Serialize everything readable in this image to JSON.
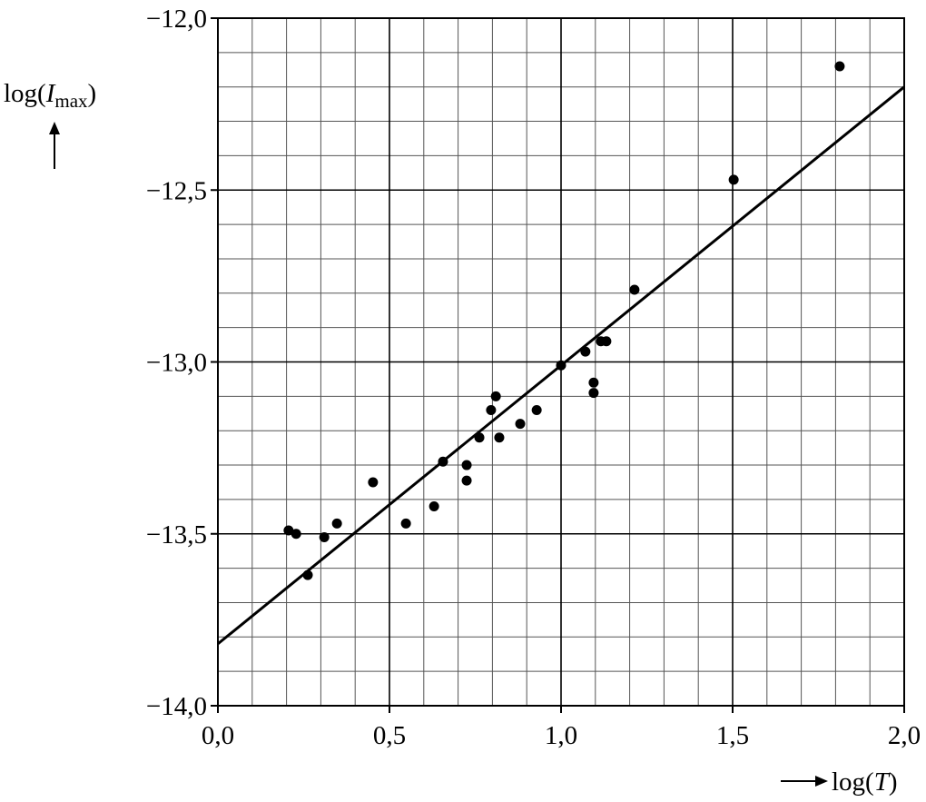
{
  "chart_data": {
    "type": "scatter",
    "xlabel": {
      "prefix": "log(",
      "var": "T",
      "suffix": ")"
    },
    "ylabel": {
      "prefix": "log(",
      "var": "I",
      "sub": "max",
      "suffix": ")"
    },
    "x": [
      0.206,
      0.228,
      0.262,
      0.31,
      0.347,
      0.452,
      0.548,
      0.63,
      0.656,
      0.725,
      0.725,
      0.762,
      0.796,
      0.81,
      0.82,
      0.881,
      0.929,
      1.0,
      1.071,
      1.095,
      1.095,
      1.116,
      1.132,
      1.214,
      1.503,
      1.812
    ],
    "values": [
      -13.49,
      -13.5,
      -13.62,
      -13.51,
      -13.47,
      -13.35,
      -13.47,
      -13.42,
      -13.29,
      -13.3,
      -13.345,
      -13.22,
      -13.14,
      -13.1,
      -13.22,
      -13.18,
      -13.14,
      -13.01,
      -12.97,
      -13.06,
      -13.09,
      -12.94,
      -12.94,
      -12.79,
      -12.47,
      -12.14
    ],
    "color": "#000000",
    "fit_line": {
      "x": [
        0,
        2
      ],
      "values": [
        -13.82,
        -12.2
      ],
      "color": "#000000"
    },
    "xlim": [
      0,
      2
    ],
    "ylim": [
      -14,
      -12
    ],
    "xticks": [
      {
        "value": 0,
        "label": "0,0"
      },
      {
        "value": 0.5,
        "label": "0,5"
      },
      {
        "value": 1,
        "label": "1,0"
      },
      {
        "value": 1.5,
        "label": "1,5"
      },
      {
        "value": 2,
        "label": "2,0"
      }
    ],
    "yticks": [
      {
        "value": -14,
        "label": "−14,0"
      },
      {
        "value": -13.5,
        "label": "−13,5"
      },
      {
        "value": -13,
        "label": "−13,0"
      },
      {
        "value": -12.5,
        "label": "−12,5"
      },
      {
        "value": -12,
        "label": "−12,0"
      }
    ],
    "x_minor_grid": [
      0.1,
      0.2,
      0.3,
      0.4,
      0.6,
      0.7,
      0.8,
      0.9,
      1.1,
      1.2,
      1.3,
      1.4,
      1.6,
      1.7,
      1.8,
      1.9
    ],
    "y_minor_grid": [
      -13.9,
      -13.8,
      -13.7,
      -13.6,
      -13.4,
      -13.3,
      -13.2,
      -13.1,
      -12.9,
      -12.8,
      -12.7,
      -12.6,
      -12.4,
      -12.3,
      -12.2,
      -12.1
    ],
    "grid": true
  }
}
